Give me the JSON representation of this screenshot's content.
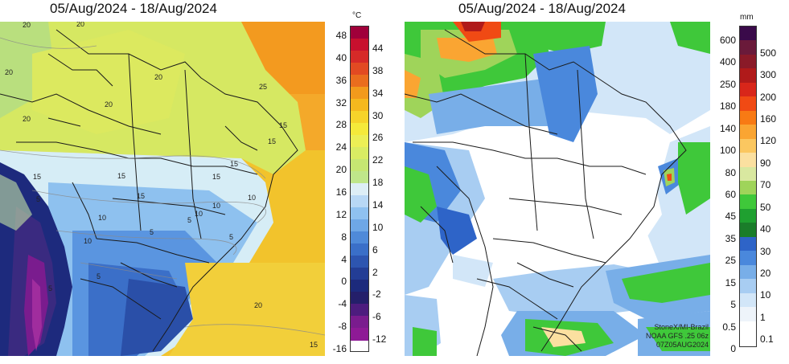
{
  "temperature_panel": {
    "title": "05/Aug/2024 - 18/Aug/2024",
    "unit": "°C",
    "labels_left": [
      "48",
      "40",
      "36",
      "32",
      "28",
      "24",
      "20",
      "16",
      "12",
      "8",
      "4",
      "0",
      "-4",
      "-8",
      "-16"
    ],
    "labels_right": [
      "44",
      "38",
      "34",
      "30",
      "26",
      "22",
      "18",
      "14",
      "10",
      "6",
      "2",
      "-2",
      "-6",
      "-12"
    ],
    "colors": [
      "#a0003a",
      "#c8102e",
      "#d62a28",
      "#e24a22",
      "#ea6d1e",
      "#f29a1c",
      "#f5b81e",
      "#f6d42a",
      "#f5ea3a",
      "#ecef55",
      "#d9ec63",
      "#c6e672",
      "#bfe68a",
      "#ddeef6",
      "#b8d8f5",
      "#8fc1f0",
      "#6ea7e6",
      "#4f8ad9",
      "#3a6fc8",
      "#2d55b0",
      "#233d95",
      "#1c2a7c",
      "#241f6a",
      "#4d1c7e",
      "#7a1c8e",
      "#8e1a96"
    ],
    "contour_labels": [
      "20",
      "20",
      "20",
      "20",
      "20",
      "20",
      "25",
      "15",
      "15",
      "15",
      "15",
      "15",
      "15",
      "10",
      "10",
      "10",
      "10",
      "10",
      "5",
      "5",
      "5",
      "5",
      "5",
      "5",
      "20",
      "15",
      "15"
    ]
  },
  "precip_panel": {
    "title": "05/Aug/2024 - 18/Aug/2024",
    "unit": "mm",
    "labels_left": [
      "600",
      "400",
      "250",
      "180",
      "140",
      "100",
      "80",
      "60",
      "45",
      "35",
      "25",
      "15",
      "5",
      "0.5",
      "0"
    ],
    "labels_right": [
      "500",
      "300",
      "200",
      "160",
      "120",
      "90",
      "70",
      "50",
      "40",
      "30",
      "20",
      "10",
      "1",
      "0.1"
    ],
    "colors": [
      "#3a0a4a",
      "#6a1a3a",
      "#8a1a28",
      "#b01a1a",
      "#d8261a",
      "#f04a14",
      "#f87a14",
      "#faa532",
      "#fbc760",
      "#fbe0a0",
      "#d9e8a0",
      "#9fd45a",
      "#3fc83a",
      "#1fa030",
      "#1a7d2a",
      "#2e64c8",
      "#4a88dc",
      "#78aee8",
      "#a8cdf2",
      "#d2e6f8",
      "#eef4fa",
      "#ffffff"
    ],
    "credit_lines": [
      "StoneX/MI-Brazil",
      "NOAA GFS .25 06z",
      "07Z05AUG2024"
    ]
  }
}
